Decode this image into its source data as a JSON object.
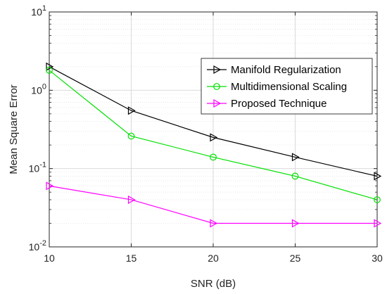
{
  "chart_data": {
    "type": "line",
    "xlabel": "SNR (dB)",
    "ylabel": "Mean Square Error",
    "x": [
      10,
      15,
      20,
      25,
      30
    ],
    "xlim": [
      10,
      30
    ],
    "ylim": [
      0.01,
      10
    ],
    "yscale": "log",
    "grid": true,
    "legend_position": "top-right",
    "x_ticks": [
      "10",
      "15",
      "20",
      "25",
      "30"
    ],
    "y_ticks": [
      {
        "value": 0.01,
        "base": "10",
        "exp": "-2"
      },
      {
        "value": 0.1,
        "base": "10",
        "exp": "-1"
      },
      {
        "value": 1,
        "base": "10",
        "exp": "0"
      },
      {
        "value": 10,
        "base": "10",
        "exp": "1"
      }
    ],
    "series": [
      {
        "name": "Manifold Regularization",
        "color": "#000000",
        "marker": "triangle-right",
        "values": [
          2.0,
          0.55,
          0.25,
          0.14,
          0.08
        ]
      },
      {
        "name": "Multidimensional Scaling",
        "color": "#00e000",
        "marker": "circle",
        "values": [
          1.8,
          0.26,
          0.14,
          0.08,
          0.04
        ]
      },
      {
        "name": "Proposed Technique",
        "color": "#ff00ff",
        "marker": "triangle-right",
        "values": [
          0.06,
          0.04,
          0.02,
          0.02,
          0.02
        ]
      }
    ]
  }
}
